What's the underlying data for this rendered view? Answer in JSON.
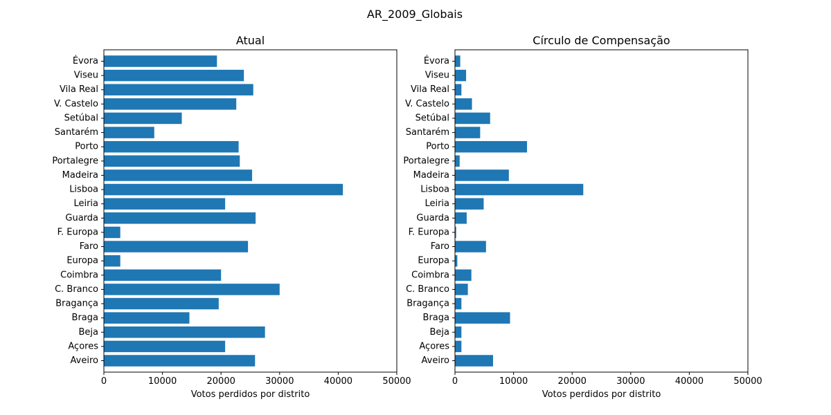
{
  "figure_title": "AR_2009_Globais",
  "colors": {
    "bar": "#1f77b4",
    "axis": "#000000",
    "background": "#ffffff"
  },
  "chart_data": [
    {
      "type": "bar",
      "orientation": "horizontal",
      "title": "Atual",
      "xlabel": "Votos perdidos por distrito",
      "ylabel": "",
      "xlim": [
        0,
        50000
      ],
      "xticks": [
        0,
        10000,
        20000,
        30000,
        40000,
        50000
      ],
      "grid": false,
      "categories": [
        "Aveiro",
        "Açores",
        "Beja",
        "Braga",
        "Bragança",
        "C. Branco",
        "Coimbra",
        "Europa",
        "Faro",
        "F. Europa",
        "Guarda",
        "Leiria",
        "Lisboa",
        "Madeira",
        "Portalegre",
        "Porto",
        "Santarém",
        "Setúbal",
        "V. Castelo",
        "Vila Real",
        "Viseu",
        "Évora"
      ],
      "values": [
        25800,
        20700,
        27500,
        14600,
        19600,
        30000,
        20000,
        2800,
        24600,
        2800,
        25900,
        20700,
        40800,
        25300,
        23200,
        23000,
        8600,
        13300,
        22600,
        25500,
        23900,
        19300
      ]
    },
    {
      "type": "bar",
      "orientation": "horizontal",
      "title": "Círculo de Compensação",
      "xlabel": "Votos perdidos por distrito",
      "ylabel": "",
      "xlim": [
        0,
        50000
      ],
      "xticks": [
        0,
        10000,
        20000,
        30000,
        40000,
        50000
      ],
      "grid": false,
      "categories": [
        "Aveiro",
        "Açores",
        "Beja",
        "Braga",
        "Bragança",
        "C. Branco",
        "Coimbra",
        "Europa",
        "Faro",
        "F. Europa",
        "Guarda",
        "Leiria",
        "Lisboa",
        "Madeira",
        "Portalegre",
        "Porto",
        "Santarém",
        "Setúbal",
        "V. Castelo",
        "Vila Real",
        "Viseu",
        "Évora"
      ],
      "values": [
        6500,
        1100,
        1100,
        9400,
        1100,
        2200,
        2800,
        400,
        5300,
        200,
        2000,
        4900,
        21900,
        9200,
        800,
        12300,
        4300,
        6000,
        2900,
        1100,
        1900,
        900
      ]
    }
  ]
}
